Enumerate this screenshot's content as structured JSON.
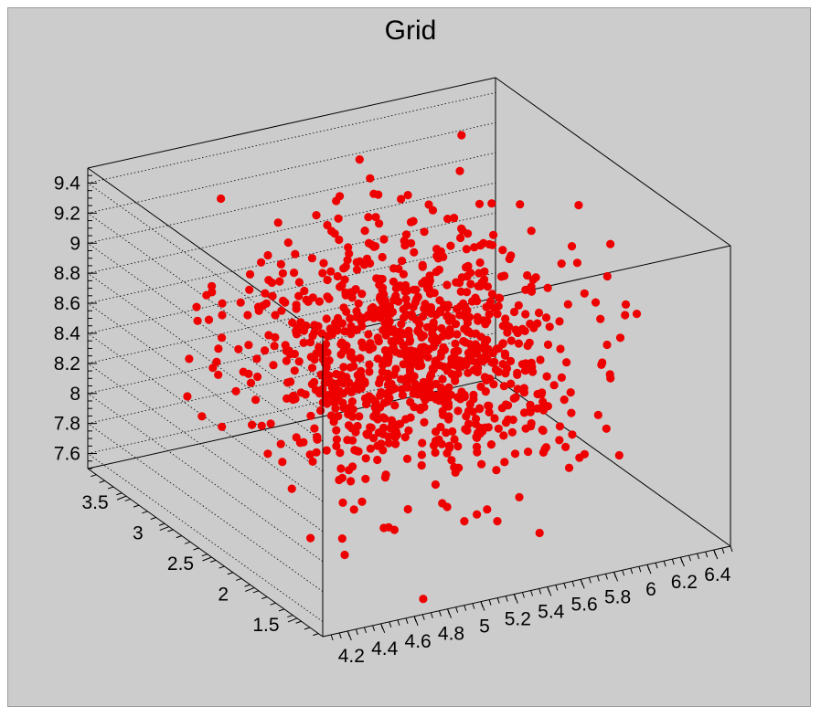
{
  "chart_data": {
    "type": "scatter",
    "title": "Grid",
    "x_ticks": [
      "4.2",
      "4.4",
      "4.6",
      "4.8",
      "5",
      "5.2",
      "5.4",
      "5.6",
      "5.8",
      "6",
      "6.2",
      "6.4"
    ],
    "y_ticks": [
      "1.5",
      "2",
      "2.5",
      "3",
      "3.5"
    ],
    "z_ticks": [
      "7.6",
      "7.8",
      "8",
      "8.2",
      "8.4",
      "8.6",
      "8.8",
      "9",
      "9.2",
      "9.4"
    ],
    "xlim": [
      4.05,
      6.5
    ],
    "ylim": [
      1.2,
      3.95
    ],
    "zlim": [
      7.5,
      9.5
    ],
    "grid": true,
    "marker_color": "#ee0000",
    "background_color": "#cccccc",
    "n_points": 1000,
    "seed": 12345
  }
}
